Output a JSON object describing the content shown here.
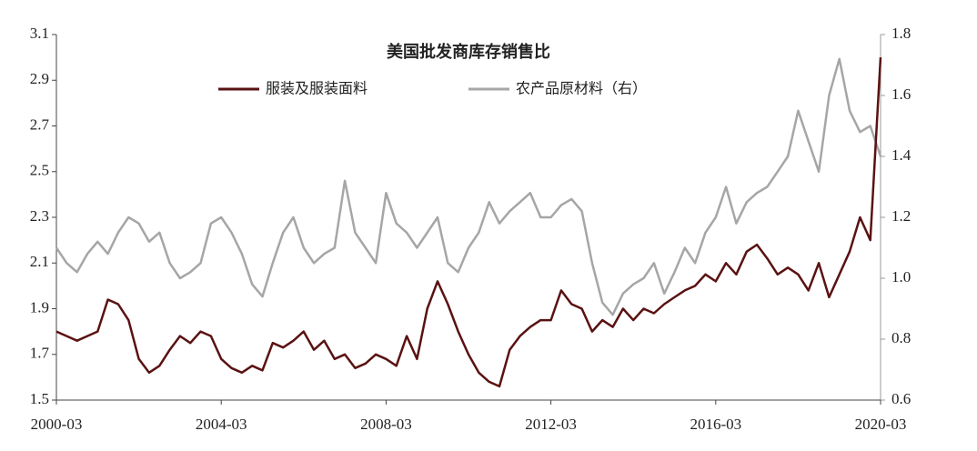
{
  "chart_data": {
    "type": "line",
    "title": "美国批发商库存销售比",
    "x": [
      "2000-03",
      "2000-06",
      "2000-09",
      "2000-12",
      "2001-03",
      "2001-06",
      "2001-09",
      "2001-12",
      "2002-03",
      "2002-06",
      "2002-09",
      "2002-12",
      "2003-03",
      "2003-06",
      "2003-09",
      "2003-12",
      "2004-03",
      "2004-06",
      "2004-09",
      "2004-12",
      "2005-03",
      "2005-06",
      "2005-09",
      "2005-12",
      "2006-03",
      "2006-06",
      "2006-09",
      "2006-12",
      "2007-03",
      "2007-06",
      "2007-09",
      "2007-12",
      "2008-03",
      "2008-06",
      "2008-09",
      "2008-12",
      "2009-03",
      "2009-06",
      "2009-09",
      "2009-12",
      "2010-03",
      "2010-06",
      "2010-09",
      "2010-12",
      "2011-03",
      "2011-06",
      "2011-09",
      "2011-12",
      "2012-03",
      "2012-06",
      "2012-09",
      "2012-12",
      "2013-03",
      "2013-06",
      "2013-09",
      "2013-12",
      "2014-03",
      "2014-06",
      "2014-09",
      "2014-12",
      "2015-03",
      "2015-06",
      "2015-09",
      "2015-12",
      "2016-03",
      "2016-06",
      "2016-09",
      "2016-12",
      "2017-03",
      "2017-06",
      "2017-09",
      "2017-12",
      "2018-03",
      "2018-06",
      "2018-09",
      "2018-12",
      "2019-03",
      "2019-06",
      "2019-09",
      "2019-12",
      "2020-03"
    ],
    "xticks": [
      "2000-03",
      "2004-03",
      "2008-03",
      "2012-03",
      "2016-03",
      "2020-03"
    ],
    "series": [
      {
        "name": "服装及服装面料",
        "color": "#5a1212",
        "values": [
          1.8,
          1.78,
          1.76,
          1.78,
          1.8,
          1.94,
          1.92,
          1.85,
          1.68,
          1.62,
          1.65,
          1.72,
          1.78,
          1.75,
          1.8,
          1.78,
          1.68,
          1.64,
          1.62,
          1.65,
          1.63,
          1.75,
          1.73,
          1.76,
          1.8,
          1.72,
          1.76,
          1.68,
          1.7,
          1.64,
          1.66,
          1.7,
          1.68,
          1.65,
          1.78,
          1.68,
          1.9,
          2.02,
          1.92,
          1.8,
          1.7,
          1.62,
          1.58,
          1.56,
          1.72,
          1.78,
          1.82,
          1.85,
          1.85,
          1.98,
          1.92,
          1.9,
          1.8,
          1.85,
          1.82,
          1.9,
          1.85,
          1.9,
          1.88,
          1.92,
          1.95,
          1.98,
          2.0,
          2.05,
          2.02,
          2.1,
          2.05,
          2.15,
          2.18,
          2.12,
          2.05,
          2.08,
          2.05,
          1.98,
          2.1,
          1.95,
          2.05,
          2.15,
          2.3,
          2.2,
          3.0
        ]
      },
      {
        "name": "农产品原材料（右）",
        "color": "#a6a6a6",
        "axis": "y2",
        "values": [
          1.1,
          1.05,
          1.02,
          1.08,
          1.12,
          1.08,
          1.15,
          1.2,
          1.18,
          1.12,
          1.15,
          1.05,
          1.0,
          1.02,
          1.05,
          1.18,
          1.2,
          1.15,
          1.08,
          0.98,
          0.94,
          1.05,
          1.15,
          1.2,
          1.1,
          1.05,
          1.08,
          1.1,
          1.32,
          1.15,
          1.1,
          1.05,
          1.28,
          1.18,
          1.15,
          1.1,
          1.15,
          1.2,
          1.05,
          1.02,
          1.1,
          1.15,
          1.25,
          1.18,
          1.22,
          1.25,
          1.28,
          1.2,
          1.2,
          1.24,
          1.26,
          1.22,
          1.05,
          0.92,
          0.88,
          0.95,
          0.98,
          1.0,
          1.05,
          0.95,
          1.02,
          1.1,
          1.05,
          1.15,
          1.2,
          1.3,
          1.18,
          1.25,
          1.28,
          1.3,
          1.35,
          1.4,
          1.55,
          1.45,
          1.35,
          1.6,
          1.72,
          1.55,
          1.48,
          1.5,
          1.4
        ]
      }
    ],
    "ylim": [
      1.5,
      3.1
    ],
    "yticks": [
      1.5,
      1.7,
      1.9,
      2.1,
      2.3,
      2.5,
      2.7,
      2.9,
      3.1
    ],
    "y2lim": [
      0.6,
      1.8
    ],
    "y2ticks": [
      0.6,
      0.8,
      {
        "value": 1,
        "label": "1.0"
      },
      1.2,
      1.4,
      1.6,
      1.8
    ]
  }
}
